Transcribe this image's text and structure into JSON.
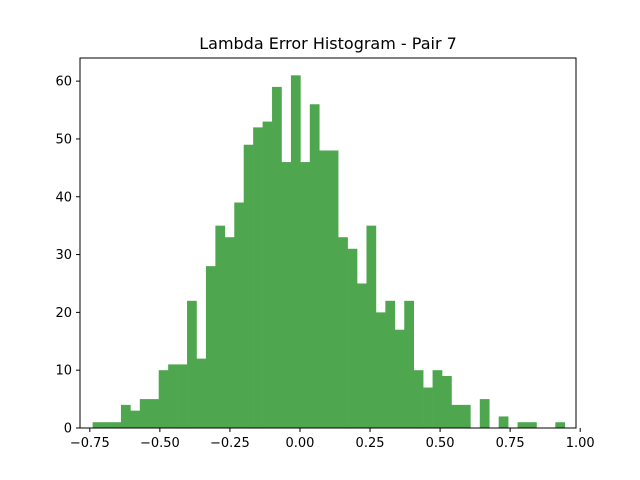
{
  "chart_data": {
    "type": "bar",
    "title": "Lambda Error Histogram - Pair 7",
    "xlabel": "",
    "ylabel": "",
    "xlim": [
      -0.785,
      0.985
    ],
    "ylim": [
      0,
      64
    ],
    "bin_start": -0.74,
    "bin_width": 0.0337,
    "values": [
      1,
      1,
      1,
      4,
      3,
      5,
      5,
      10,
      11,
      11,
      22,
      12,
      28,
      35,
      33,
      39,
      49,
      52,
      53,
      59,
      46,
      61,
      46,
      56,
      48,
      48,
      33,
      31,
      25,
      35,
      20,
      22,
      17,
      22,
      10,
      7,
      10,
      9,
      4,
      4,
      0,
      5,
      0,
      2,
      0,
      1,
      1,
      0,
      0,
      1
    ],
    "x_ticks": [
      -0.75,
      -0.5,
      -0.25,
      0.0,
      0.25,
      0.5,
      0.75,
      1.0
    ],
    "x_tick_labels": [
      "−0.75",
      "−0.50",
      "−0.25",
      "0.00",
      "0.25",
      "0.50",
      "0.75",
      "1.00"
    ],
    "y_ticks": [
      0,
      10,
      20,
      30,
      40,
      50,
      60
    ],
    "y_tick_labels": [
      "0",
      "10",
      "20",
      "30",
      "40",
      "50",
      "60"
    ],
    "bar_color": "#4ea64e",
    "grid": false
  }
}
